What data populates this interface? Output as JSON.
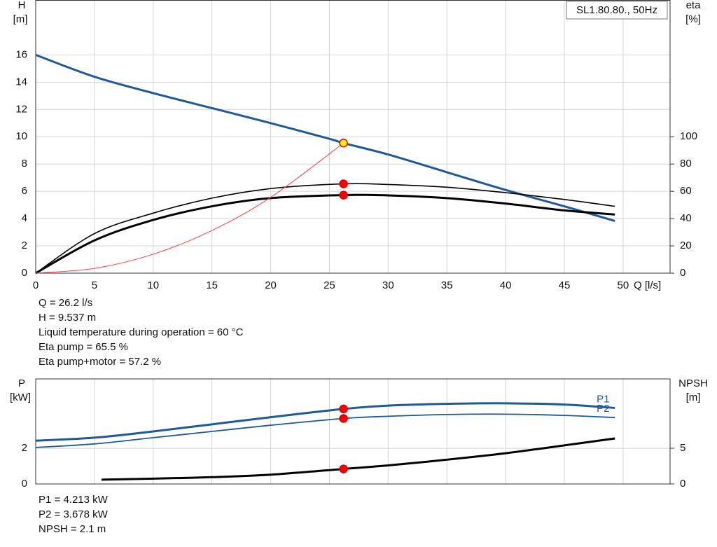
{
  "chart_data": [
    {
      "type": "line",
      "title": "SL1.80.80., 50Hz",
      "x_label": "Q [l/s]",
      "y_label": "H",
      "y_unit": "[m]",
      "y2_label": "eta",
      "y2_unit": "[%]",
      "xlim": [
        0,
        54
      ],
      "xticks": [
        0,
        5,
        10,
        15,
        20,
        25,
        30,
        35,
        40,
        45,
        50
      ],
      "ylim": [
        0,
        20
      ],
      "yticks": [
        0,
        2,
        4,
        6,
        8,
        10,
        12,
        14,
        16
      ],
      "y2lim": [
        0,
        200
      ],
      "y2ticks": [
        0,
        20,
        40,
        60,
        80,
        100
      ],
      "grid": true,
      "series": [
        {
          "color": "#1f5a96",
          "width": 3,
          "axis": "y",
          "x": [
            0,
            5,
            10,
            15,
            20,
            25,
            26.2,
            30,
            35,
            40,
            45,
            49.3
          ],
          "values": [
            16,
            14.4,
            13.2,
            12.1,
            11.0,
            9.85,
            9.537,
            8.7,
            7.4,
            6.1,
            4.9,
            3.83
          ]
        },
        {
          "color": "#000000",
          "width": 1.6,
          "axis": "y2",
          "x": [
            0,
            5,
            10,
            15,
            20,
            26.2,
            30,
            35,
            40,
            45,
            49.3
          ],
          "values": [
            0,
            29,
            44,
            55,
            62,
            65.5,
            65,
            63,
            59,
            54,
            49
          ]
        },
        {
          "color": "#000000",
          "width": 3,
          "axis": "y2",
          "x": [
            0,
            5,
            10,
            15,
            20,
            26.2,
            30,
            35,
            40,
            45,
            49.3
          ],
          "values": [
            0,
            24,
            39,
            49,
            55,
            57.2,
            57,
            55,
            51,
            46,
            43
          ]
        },
        {
          "color": "#ff4040",
          "width": 1,
          "axis": "y",
          "x": [
            0,
            5,
            10,
            15,
            20,
            26.2
          ],
          "values": [
            0,
            0.35,
            1.39,
            3.13,
            5.56,
            9.537
          ]
        },
        {
          "mark": "dot",
          "color": "#ff0000",
          "axis": "y2",
          "x": [
            26.2,
            26.2
          ],
          "values": [
            65.5,
            57.2
          ]
        },
        {
          "mark": "dot",
          "color": "#ffee00",
          "axis": "y",
          "x": [
            26.2
          ],
          "values": [
            9.537
          ]
        }
      ],
      "info": [
        "Q = 26.2 l/s",
        "H = 9.537 m",
        "Liquid temperature during operation = 60 °C",
        "Eta pump = 65.5 %",
        "Eta pump+motor = 57.2 %"
      ]
    },
    {
      "type": "line",
      "y_label": "P",
      "y_unit": "[kW]",
      "y2_label": "NPSH",
      "y2_unit": "[m]",
      "xlim": [
        0,
        54
      ],
      "xticks": [
        0,
        5,
        10,
        15,
        20,
        25,
        30,
        35,
        40,
        45,
        50
      ],
      "ylim": [
        0,
        5.9
      ],
      "yticks": [
        0,
        2
      ],
      "y2lim": [
        0,
        14.7
      ],
      "y2ticks": [
        0,
        5
      ],
      "grid": true,
      "series": [
        {
          "name": "P1",
          "color": "#1f5a96",
          "width": 3,
          "axis": "y",
          "x": [
            0,
            5,
            10,
            15,
            20,
            26.2,
            30,
            35,
            40,
            45,
            49.3
          ],
          "values": [
            2.43,
            2.6,
            2.95,
            3.35,
            3.75,
            4.213,
            4.4,
            4.5,
            4.53,
            4.46,
            4.27
          ]
        },
        {
          "name": "P2",
          "color": "#1f5a96",
          "width": 1.8,
          "axis": "y",
          "x": [
            0,
            5,
            10,
            15,
            20,
            26.2,
            30,
            35,
            40,
            45,
            49.3
          ],
          "values": [
            2.05,
            2.25,
            2.6,
            2.95,
            3.3,
            3.678,
            3.8,
            3.9,
            3.92,
            3.85,
            3.73
          ]
        },
        {
          "color": "#000000",
          "width": 3,
          "axis": "y2",
          "x": [
            5.6,
            10,
            15,
            20,
            26.2,
            30,
            35,
            40,
            45,
            49.3
          ],
          "values": [
            0.6,
            0.75,
            0.95,
            1.3,
            2.1,
            2.6,
            3.4,
            4.3,
            5.4,
            6.37
          ]
        },
        {
          "mark": "dot",
          "color": "#ff0000",
          "axis": "y",
          "x": [
            26.2,
            26.2
          ],
          "values": [
            4.213,
            3.678
          ]
        },
        {
          "mark": "dot",
          "color": "#ff0000",
          "axis": "y2",
          "x": [
            26.2
          ],
          "values": [
            2.1
          ]
        }
      ],
      "info": [
        "P1 = 4.213 kW",
        "P2 = 3.678 kW",
        "NPSH = 2.1 m"
      ]
    }
  ]
}
